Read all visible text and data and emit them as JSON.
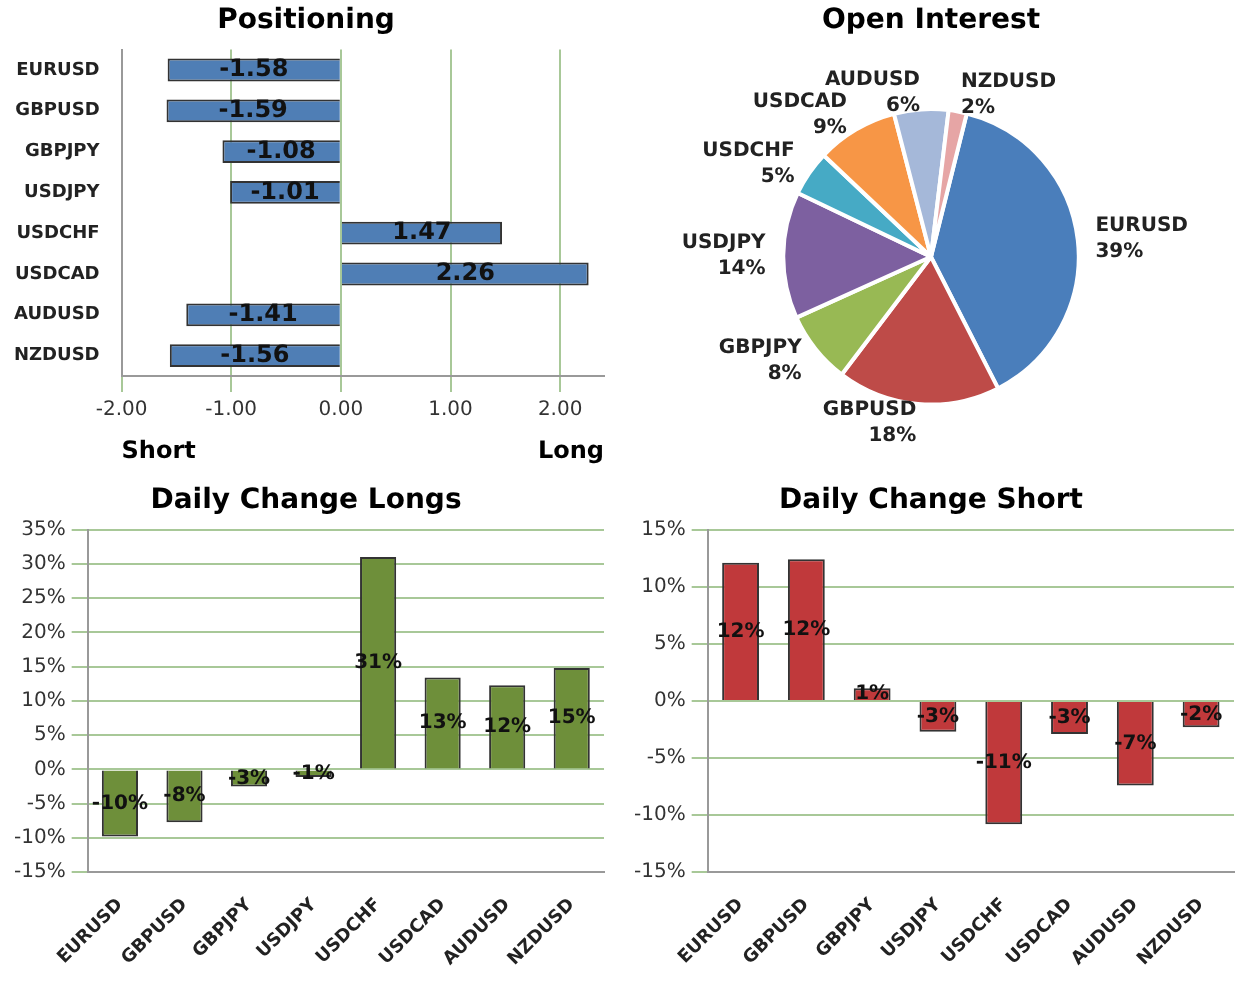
{
  "chart_data": [
    {
      "type": "bar",
      "orientation": "horizontal",
      "title": "Positioning",
      "categories": [
        "EURUSD",
        "GBPUSD",
        "GBPJPY",
        "USDJPY",
        "USDCHF",
        "USDCAD",
        "AUDUSD",
        "NZDUSD"
      ],
      "values": [
        -1.58,
        -1.59,
        -1.08,
        -1.01,
        1.47,
        2.26,
        -1.41,
        -1.56
      ],
      "color": "#4f7eb5",
      "data_labels": true,
      "xlim": [
        -2,
        2.4
      ],
      "xticks": [
        {
          "value": -2,
          "label": "-2.00"
        },
        {
          "value": -1,
          "label": "-1.00"
        },
        {
          "value": 0,
          "label": "0.00"
        },
        {
          "value": 1,
          "label": "1.00"
        },
        {
          "value": 2,
          "label": "2.00"
        }
      ],
      "grid": "x",
      "annotations": [
        "Short",
        "Long"
      ]
    },
    {
      "type": "pie",
      "title": "Open Interest",
      "categories": [
        "EURUSD",
        "GBPUSD",
        "GBPJPY",
        "USDJPY",
        "USDCHF",
        "USDCAD",
        "AUDUSD",
        "NZDUSD"
      ],
      "values": [
        39,
        18,
        8,
        14,
        5,
        9,
        6,
        2
      ],
      "value_labels": [
        "39%",
        "18%",
        "8%",
        "14%",
        "5%",
        "9%",
        "6%",
        "2%"
      ],
      "colors": [
        "#4a7ebb",
        "#be4b48",
        "#98b954",
        "#7d60a0",
        "#46aac5",
        "#f79646",
        "#a5b8d9",
        "#e6a5a5"
      ]
    },
    {
      "type": "bar",
      "title": "Daily Change Longs",
      "categories": [
        "EURUSD",
        "GBPUSD",
        "GBPJPY",
        "USDJPY",
        "USDCHF",
        "USDCAD",
        "AUDUSD",
        "NZDUSD"
      ],
      "values": [
        -9.8,
        -7.7,
        -2.5,
        -1.1,
        31,
        13.4,
        12.3,
        14.8
      ],
      "value_labels": [
        "-10%",
        "-8%",
        "-3%",
        "-1%",
        "31%",
        "13%",
        "12%",
        "15%"
      ],
      "color": "#6e8f3a",
      "ylim": [
        -15,
        35
      ],
      "yticks": [
        {
          "value": -15,
          "label": "-15%"
        },
        {
          "value": -10,
          "label": "-10%"
        },
        {
          "value": -5,
          "label": "-5%"
        },
        {
          "value": 0,
          "label": "0%"
        },
        {
          "value": 5,
          "label": "5%"
        },
        {
          "value": 10,
          "label": "10%"
        },
        {
          "value": 15,
          "label": "15%"
        },
        {
          "value": 20,
          "label": "20%"
        },
        {
          "value": 25,
          "label": "25%"
        },
        {
          "value": 30,
          "label": "30%"
        },
        {
          "value": 35,
          "label": "35%"
        }
      ],
      "grid": "y"
    },
    {
      "type": "bar",
      "title": "Daily Change Short",
      "categories": [
        "EURUSD",
        "GBPUSD",
        "GBPJPY",
        "USDJPY",
        "USDCHF",
        "USDCAD",
        "AUDUSD",
        "NZDUSD"
      ],
      "values": [
        12.1,
        12.4,
        1.1,
        -2.7,
        -10.8,
        -2.9,
        -7.4,
        -2.3
      ],
      "value_labels": [
        "12%",
        "12%",
        "1%",
        "-3%",
        "-11%",
        "-3%",
        "-7%",
        "-2%"
      ],
      "color": "#c0393b",
      "ylim": [
        -15,
        15
      ],
      "yticks": [
        {
          "value": -15,
          "label": "-15%"
        },
        {
          "value": -10,
          "label": "-10%"
        },
        {
          "value": -5,
          "label": "-5%"
        },
        {
          "value": 0,
          "label": "0%"
        },
        {
          "value": 5,
          "label": "5%"
        },
        {
          "value": 10,
          "label": "10%"
        },
        {
          "value": 15,
          "label": "15%"
        }
      ],
      "grid": "y"
    }
  ]
}
